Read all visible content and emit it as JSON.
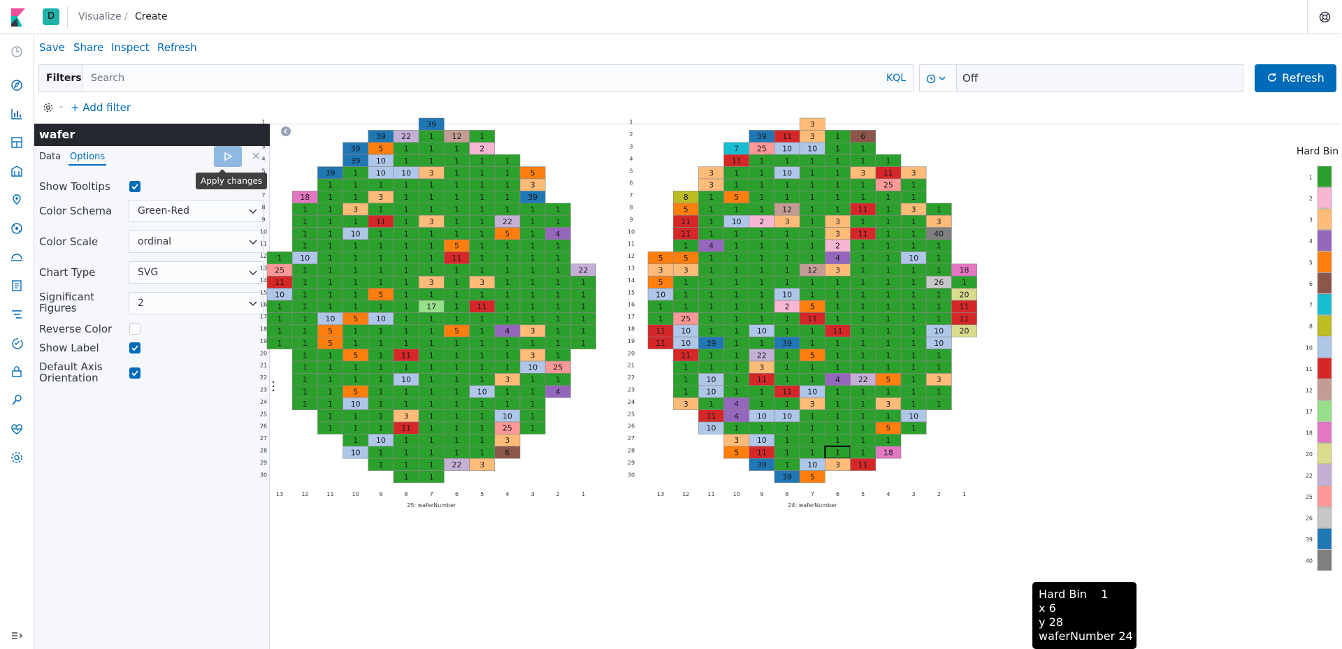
{
  "breadcrumbs": {
    "space": "D",
    "parent": "Visualize",
    "current": "Create"
  },
  "menu": {
    "save": "Save",
    "share": "Share",
    "inspect": "Inspect",
    "refresh": "Refresh"
  },
  "query_bar": {
    "filters_label": "Filters",
    "search_placeholder": "Search",
    "kql": "KQL",
    "time_value": "Off",
    "refresh_button": "Refresh",
    "add_filter": "+ Add filter"
  },
  "editor": {
    "title": "wafer",
    "tabs": {
      "data": "Data",
      "options": "Options"
    },
    "apply_tooltip": "Apply changes",
    "options": {
      "show_tooltips": {
        "label": "Show Tooltips",
        "checked": true
      },
      "color_schema": {
        "label": "Color Schema",
        "value": "Green-Red"
      },
      "color_scale": {
        "label": "Color Scale",
        "value": "ordinal"
      },
      "chart_type": {
        "label": "Chart Type",
        "value": "SVG"
      },
      "significant_figures": {
        "label": "Significant Figures",
        "value": "2"
      },
      "reverse_color": {
        "label": "Reverse Color",
        "checked": false
      },
      "show_label": {
        "label": "Show Label",
        "checked": true
      },
      "default_axis_orientation": {
        "label": "Default Axis Orientation",
        "checked": true
      }
    }
  },
  "hover_tooltip": {
    "rows": [
      [
        "Hard Bin",
        "1"
      ],
      [
        "x",
        "6"
      ],
      [
        "y",
        "28"
      ],
      [
        "waferNumber",
        "24"
      ]
    ]
  },
  "icons": {
    "logo": "kibana-logo",
    "help": "help-icon",
    "nav": [
      "clock-icon",
      "discover-icon",
      "visualize-icon",
      "dashboard-icon",
      "canvas-icon",
      "maps-icon",
      "ml-icon",
      "infra-icon",
      "logs-icon",
      "apm-icon",
      "uptime-icon",
      "security-icon",
      "dev-tools-icon",
      "monitoring-icon",
      "management-icon"
    ]
  },
  "colors": {
    "1": "#2ca02c",
    "2": "#f7b6d2",
    "3": "#ffbb78",
    "4": "#9467bd",
    "5": "#ff7f0e",
    "6": "#8c564b",
    "7": "#17becf",
    "8": "#bcbd22",
    "10": "#aec7e8",
    "11": "#d62728",
    "12": "#c49c94",
    "17": "#98df8a",
    "18": "#e377c2",
    "20": "#dbdb8d",
    "22": "#c5b0d5",
    "25": "#ff9896",
    "26": "#c7c7c7",
    "39": "#1f77b4",
    "40": "#7f7f7f"
  },
  "chart_data": {
    "type": "heatmap",
    "legend_title": "Hard Bin",
    "legend_values": [
      "1",
      "2",
      "3",
      "4",
      "5",
      "6",
      "7",
      "8",
      "10",
      "11",
      "12",
      "17",
      "18",
      "20",
      "22",
      "25",
      "26",
      "39",
      "40"
    ],
    "x_ticks": [
      "13",
      "12",
      "11",
      "10",
      "9",
      "8",
      "7",
      "6",
      "5",
      "4",
      "3",
      "2",
      "1"
    ],
    "y_ticks": [
      "1",
      "2",
      "3",
      "4",
      "5",
      "6",
      "7",
      "8",
      "9",
      "10",
      "11",
      "12",
      "13",
      "14",
      "15",
      "16",
      "17",
      "18",
      "19",
      "20",
      "21",
      "22",
      "23",
      "24",
      "25",
      "26",
      "27",
      "28",
      "29",
      "30"
    ],
    "wafers": [
      {
        "xlabel": "25: waferNumber",
        "rows": [
          [
            null,
            null,
            null,
            null,
            null,
            null,
            39,
            null,
            null,
            null,
            null,
            null,
            null
          ],
          [
            null,
            null,
            null,
            null,
            39,
            22,
            1,
            12,
            1,
            null,
            null,
            null,
            null
          ],
          [
            null,
            null,
            null,
            39,
            5,
            1,
            1,
            1,
            2,
            null,
            null,
            null,
            null
          ],
          [
            null,
            null,
            null,
            39,
            10,
            1,
            1,
            1,
            1,
            1,
            null,
            null,
            null
          ],
          [
            null,
            null,
            39,
            1,
            10,
            10,
            3,
            1,
            1,
            1,
            5,
            null,
            null
          ],
          [
            null,
            null,
            1,
            1,
            1,
            1,
            1,
            1,
            1,
            1,
            3,
            null,
            null
          ],
          [
            null,
            18,
            1,
            1,
            3,
            1,
            1,
            1,
            1,
            1,
            39,
            null,
            null
          ],
          [
            null,
            1,
            1,
            3,
            1,
            1,
            1,
            1,
            1,
            1,
            1,
            1,
            null
          ],
          [
            null,
            1,
            1,
            1,
            11,
            1,
            3,
            1,
            1,
            22,
            1,
            1,
            null
          ],
          [
            null,
            1,
            1,
            10,
            1,
            1,
            1,
            1,
            1,
            5,
            1,
            4,
            null
          ],
          [
            null,
            1,
            1,
            1,
            1,
            1,
            1,
            5,
            1,
            1,
            1,
            1,
            null
          ],
          [
            1,
            10,
            1,
            1,
            1,
            1,
            1,
            11,
            1,
            1,
            1,
            1,
            null
          ],
          [
            25,
            1,
            1,
            1,
            1,
            1,
            1,
            1,
            1,
            1,
            1,
            1,
            22
          ],
          [
            11,
            1,
            1,
            1,
            1,
            1,
            3,
            1,
            3,
            1,
            1,
            1,
            1
          ],
          [
            10,
            1,
            1,
            1,
            5,
            1,
            1,
            1,
            1,
            1,
            1,
            1,
            1
          ],
          [
            1,
            1,
            1,
            1,
            1,
            1,
            17,
            1,
            11,
            1,
            1,
            1,
            1
          ],
          [
            1,
            1,
            10,
            5,
            10,
            1,
            1,
            1,
            1,
            1,
            1,
            1,
            1
          ],
          [
            1,
            1,
            5,
            1,
            1,
            1,
            1,
            5,
            1,
            4,
            3,
            1,
            1
          ],
          [
            1,
            1,
            5,
            1,
            1,
            1,
            1,
            1,
            1,
            1,
            1,
            1,
            1
          ],
          [
            null,
            1,
            1,
            5,
            1,
            11,
            1,
            1,
            1,
            1,
            3,
            1,
            null
          ],
          [
            null,
            1,
            1,
            1,
            1,
            1,
            1,
            1,
            1,
            1,
            10,
            25,
            null
          ],
          [
            null,
            1,
            1,
            1,
            1,
            10,
            1,
            1,
            1,
            3,
            1,
            1,
            null
          ],
          [
            null,
            1,
            1,
            5,
            1,
            1,
            1,
            1,
            10,
            1,
            1,
            4,
            null
          ],
          [
            null,
            1,
            1,
            10,
            1,
            1,
            1,
            1,
            1,
            1,
            1,
            null,
            null
          ],
          [
            null,
            null,
            1,
            1,
            1,
            3,
            1,
            1,
            1,
            10,
            1,
            null,
            null
          ],
          [
            null,
            null,
            1,
            1,
            1,
            11,
            1,
            1,
            1,
            25,
            1,
            null,
            null
          ],
          [
            null,
            null,
            null,
            1,
            10,
            1,
            1,
            1,
            1,
            3,
            null,
            null,
            null
          ],
          [
            null,
            null,
            null,
            10,
            1,
            1,
            1,
            1,
            1,
            6,
            null,
            null,
            null
          ],
          [
            null,
            null,
            null,
            null,
            1,
            1,
            1,
            22,
            3,
            null,
            null,
            null,
            null
          ],
          [
            null,
            null,
            null,
            null,
            null,
            1,
            1,
            null,
            null,
            null,
            null,
            null,
            null
          ]
        ]
      },
      {
        "xlabel": "24: waferNumber",
        "rows": [
          [
            null,
            null,
            null,
            null,
            null,
            null,
            3,
            null,
            null,
            null,
            null,
            null,
            null
          ],
          [
            null,
            null,
            null,
            null,
            39,
            11,
            3,
            1,
            6,
            null,
            null,
            null,
            null
          ],
          [
            null,
            null,
            null,
            7,
            25,
            10,
            10,
            1,
            1,
            null,
            null,
            null,
            null
          ],
          [
            null,
            null,
            null,
            11,
            1,
            1,
            1,
            1,
            1,
            1,
            null,
            null,
            null
          ],
          [
            null,
            null,
            3,
            1,
            1,
            10,
            1,
            1,
            3,
            11,
            3,
            null,
            null
          ],
          [
            null,
            null,
            3,
            1,
            1,
            1,
            1,
            1,
            1,
            25,
            1,
            null,
            null
          ],
          [
            null,
            8,
            1,
            5,
            1,
            1,
            1,
            1,
            1,
            1,
            1,
            null,
            null
          ],
          [
            null,
            5,
            1,
            1,
            1,
            12,
            1,
            1,
            11,
            1,
            3,
            1,
            null
          ],
          [
            null,
            11,
            1,
            10,
            2,
            3,
            1,
            3,
            1,
            1,
            1,
            3,
            null
          ],
          [
            null,
            11,
            1,
            1,
            1,
            1,
            1,
            3,
            11,
            1,
            1,
            40,
            null
          ],
          [
            null,
            1,
            4,
            1,
            1,
            1,
            1,
            2,
            1,
            1,
            1,
            1,
            null
          ],
          [
            5,
            5,
            1,
            1,
            1,
            1,
            1,
            4,
            1,
            1,
            10,
            1,
            null
          ],
          [
            3,
            3,
            1,
            1,
            1,
            1,
            12,
            3,
            1,
            1,
            1,
            1,
            18
          ],
          [
            5,
            1,
            1,
            1,
            1,
            1,
            1,
            1,
            1,
            1,
            1,
            26,
            1
          ],
          [
            10,
            1,
            1,
            1,
            1,
            10,
            1,
            1,
            1,
            1,
            1,
            1,
            20
          ],
          [
            1,
            1,
            1,
            1,
            1,
            2,
            5,
            1,
            1,
            1,
            1,
            1,
            11
          ],
          [
            1,
            25,
            1,
            1,
            1,
            1,
            11,
            1,
            1,
            1,
            1,
            1,
            11
          ],
          [
            11,
            10,
            1,
            1,
            10,
            1,
            1,
            11,
            1,
            1,
            1,
            10,
            20
          ],
          [
            11,
            10,
            39,
            1,
            1,
            39,
            1,
            1,
            1,
            1,
            1,
            10,
            null
          ],
          [
            null,
            11,
            1,
            1,
            22,
            1,
            5,
            1,
            1,
            1,
            1,
            1,
            null
          ],
          [
            null,
            1,
            1,
            1,
            3,
            1,
            1,
            1,
            1,
            1,
            1,
            1,
            null
          ],
          [
            null,
            1,
            10,
            1,
            11,
            1,
            1,
            4,
            22,
            5,
            1,
            3,
            null
          ],
          [
            null,
            1,
            10,
            1,
            1,
            11,
            10,
            1,
            1,
            1,
            1,
            1,
            null
          ],
          [
            null,
            3,
            1,
            4,
            1,
            1,
            3,
            1,
            1,
            3,
            1,
            1,
            null
          ],
          [
            null,
            null,
            11,
            4,
            10,
            10,
            1,
            1,
            1,
            1,
            10,
            null,
            null
          ],
          [
            null,
            null,
            10,
            1,
            1,
            1,
            1,
            1,
            1,
            5,
            1,
            null,
            null
          ],
          [
            null,
            null,
            null,
            3,
            10,
            1,
            1,
            1,
            1,
            1,
            null,
            null,
            null
          ],
          [
            null,
            null,
            null,
            5,
            11,
            1,
            1,
            1,
            1,
            18,
            null,
            null,
            null
          ],
          [
            null,
            null,
            null,
            null,
            39,
            1,
            10,
            3,
            11,
            null,
            null,
            null,
            null
          ],
          [
            null,
            null,
            null,
            null,
            null,
            39,
            5,
            null,
            null,
            null,
            null,
            null,
            null
          ]
        ]
      }
    ]
  }
}
